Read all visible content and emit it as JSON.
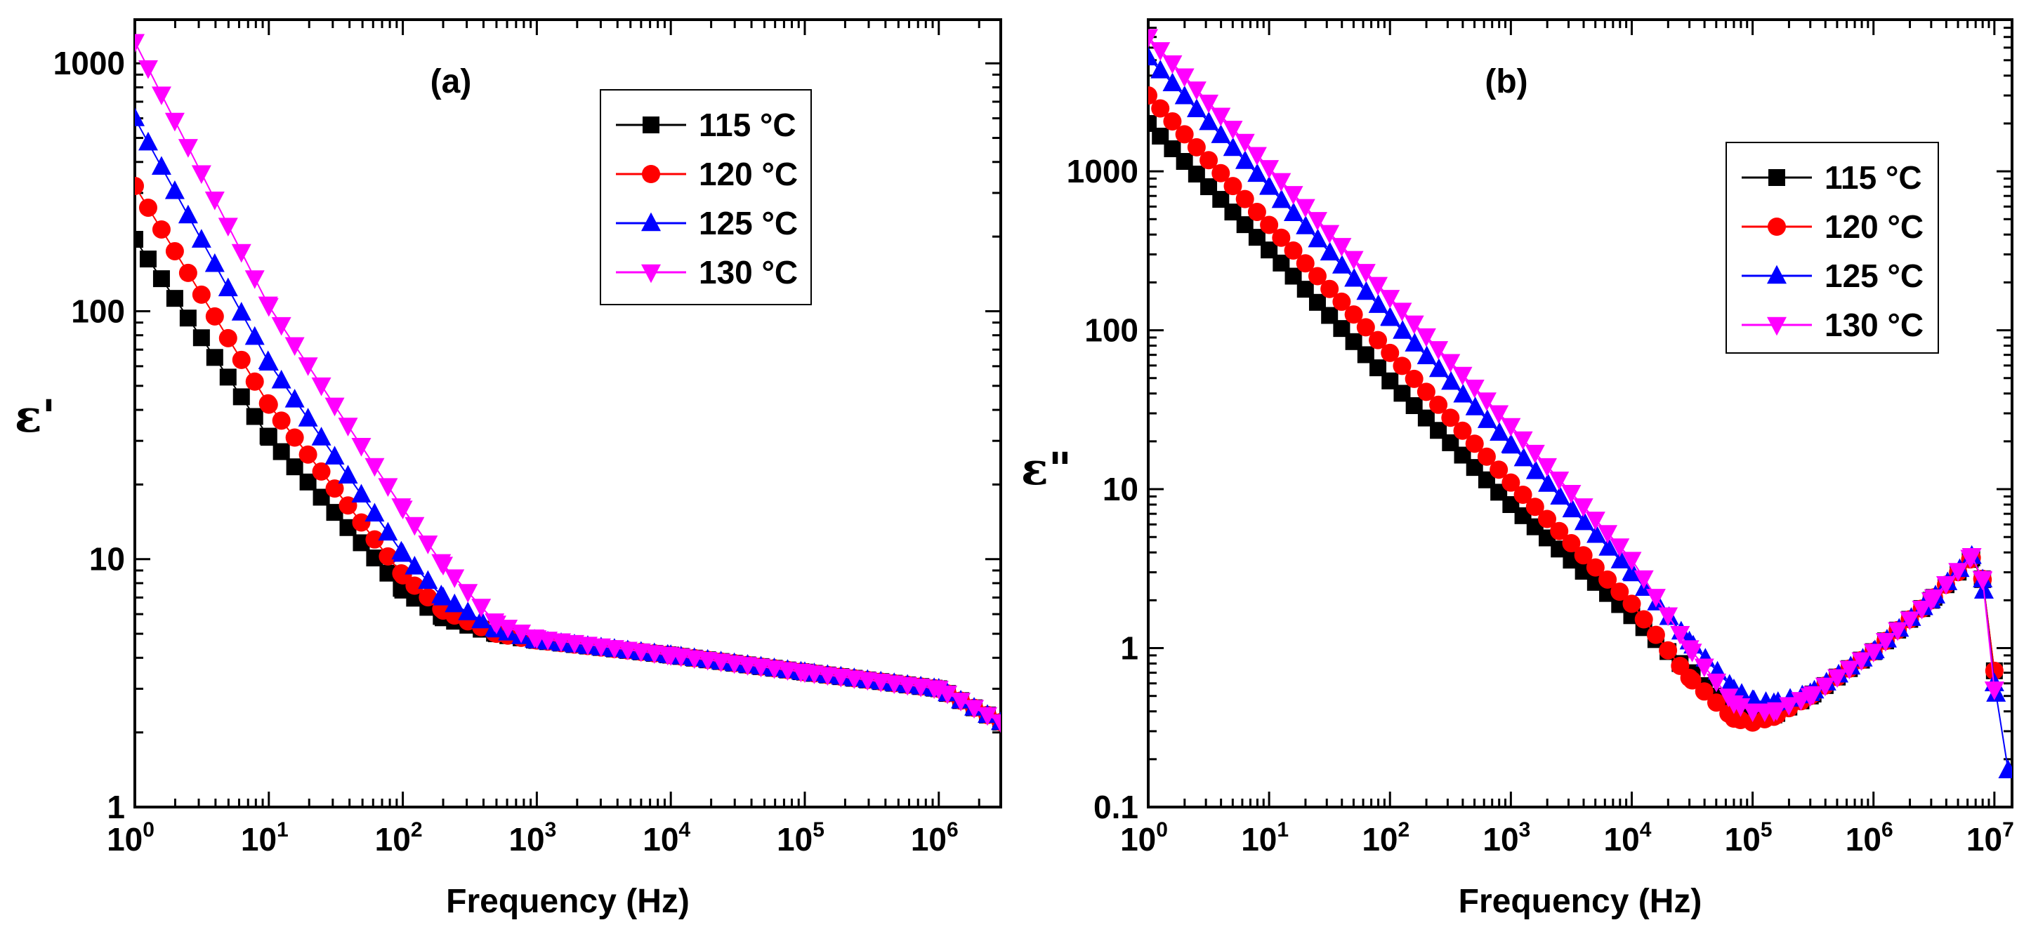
{
  "chart_data": [
    {
      "type": "line",
      "panel_label": "(a)",
      "xlabel": "Frequency (Hz)",
      "ylabel": "ε'",
      "xscale": "log",
      "yscale": "log",
      "xlim": [
        1,
        2900000
      ],
      "ylim": [
        1,
        1500
      ],
      "xticks": [
        {
          "base": "10",
          "exp": "0"
        },
        {
          "base": "10",
          "exp": "1"
        },
        {
          "base": "10",
          "exp": "2"
        },
        {
          "base": "10",
          "exp": "3"
        },
        {
          "base": "10",
          "exp": "4"
        },
        {
          "base": "10",
          "exp": "5"
        },
        {
          "base": "10",
          "exp": "6"
        }
      ],
      "yticks": [
        "1",
        "10",
        "100",
        "1000"
      ],
      "legend_position": "top-right",
      "series": [
        {
          "name": "115 °C",
          "color": "#000000",
          "marker": "square",
          "x": [
            1,
            10,
            100,
            200,
            500,
            1000,
            10000,
            100000,
            1000000,
            2900000
          ],
          "y": [
            195,
            31,
            7.5,
            5.8,
            5.0,
            4.7,
            4.1,
            3.5,
            3.0,
            2.2
          ]
        },
        {
          "name": "120 °C",
          "color": "#ff0000",
          "marker": "circle",
          "x": [
            1,
            10,
            100,
            200,
            500,
            1000,
            10000,
            100000,
            1000000,
            2900000
          ],
          "y": [
            320,
            42,
            8.6,
            6.2,
            5.0,
            4.7,
            4.1,
            3.5,
            3.0,
            2.2
          ]
        },
        {
          "name": "125 °C",
          "color": "#0000ff",
          "marker": "triangle-up",
          "x": [
            1,
            10,
            100,
            200,
            500,
            1000,
            10000,
            100000,
            1000000,
            2900000
          ],
          "y": [
            600,
            62,
            10.5,
            7.0,
            5.2,
            4.7,
            4.1,
            3.5,
            3.0,
            2.2
          ]
        },
        {
          "name": "130 °C",
          "color": "#ff00ff",
          "marker": "triangle-down",
          "x": [
            1,
            10,
            100,
            200,
            500,
            1000,
            10000,
            100000,
            1000000,
            2900000
          ],
          "y": [
            1220,
            105,
            16,
            9.5,
            5.5,
            4.8,
            4.1,
            3.5,
            3.0,
            2.2
          ]
        }
      ]
    },
    {
      "type": "line",
      "panel_label": "(b)",
      "xlabel": "Frequency (Hz)",
      "ylabel": "ε\"",
      "xscale": "log",
      "yscale": "log",
      "xlim": [
        1,
        14000000
      ],
      "ylim": [
        0.1,
        9000
      ],
      "xticks": [
        {
          "base": "10",
          "exp": "0"
        },
        {
          "base": "10",
          "exp": "1"
        },
        {
          "base": "10",
          "exp": "2"
        },
        {
          "base": "10",
          "exp": "3"
        },
        {
          "base": "10",
          "exp": "4"
        },
        {
          "base": "10",
          "exp": "5"
        },
        {
          "base": "10",
          "exp": "6"
        },
        {
          "base": "10",
          "exp": "7"
        }
      ],
      "yticks": [
        "0.1",
        "1",
        "10",
        "100",
        "1000"
      ],
      "legend_position": "top-right",
      "series": [
        {
          "name": "115 °C",
          "color": "#000000",
          "marker": "square",
          "x": [
            1,
            10,
            100,
            1000,
            10000,
            30000,
            70000,
            100000,
            150000,
            300000,
            1000000,
            3000000,
            6500000,
            8000000,
            10000000
          ],
          "y": [
            2000,
            320,
            48,
            8,
            1.6,
            0.7,
            0.4,
            0.36,
            0.38,
            0.5,
            0.95,
            2.0,
            3.7,
            2.7,
            0.72
          ]
        },
        {
          "name": "120 °C",
          "color": "#ff0000",
          "marker": "circle",
          "x": [
            1,
            10,
            100,
            1000,
            10000,
            30000,
            70000,
            100000,
            150000,
            300000,
            1000000,
            3000000,
            6500000,
            8000000,
            10000000
          ],
          "y": [
            3000,
            460,
            72,
            11,
            1.9,
            0.65,
            0.36,
            0.34,
            0.37,
            0.5,
            0.95,
            2.0,
            3.7,
            2.7,
            0.72
          ]
        },
        {
          "name": "125 °C",
          "color": "#0000ff",
          "marker": "triangle-up",
          "x": [
            1,
            10,
            100,
            1000,
            10000,
            30000,
            70000,
            100000,
            150000,
            300000,
            1000000,
            3000000,
            6500000,
            8000000,
            10000000,
            13000000
          ],
          "y": [
            5200,
            800,
            120,
            19,
            3.0,
            1.1,
            0.55,
            0.47,
            0.45,
            0.52,
            0.95,
            2.0,
            3.8,
            2.7,
            0.6,
            0.17
          ]
        },
        {
          "name": "130 °C",
          "color": "#ff00ff",
          "marker": "triangle-down",
          "x": [
            1,
            10,
            100,
            1000,
            10000,
            30000,
            70000,
            100000,
            150000,
            300000,
            1000000,
            3000000,
            6500000,
            8000000,
            10000000
          ],
          "y": [
            7000,
            1050,
            160,
            25,
            3.6,
            1.0,
            0.45,
            0.4,
            0.4,
            0.5,
            0.95,
            2.0,
            3.8,
            2.7,
            0.55
          ]
        }
      ]
    }
  ]
}
